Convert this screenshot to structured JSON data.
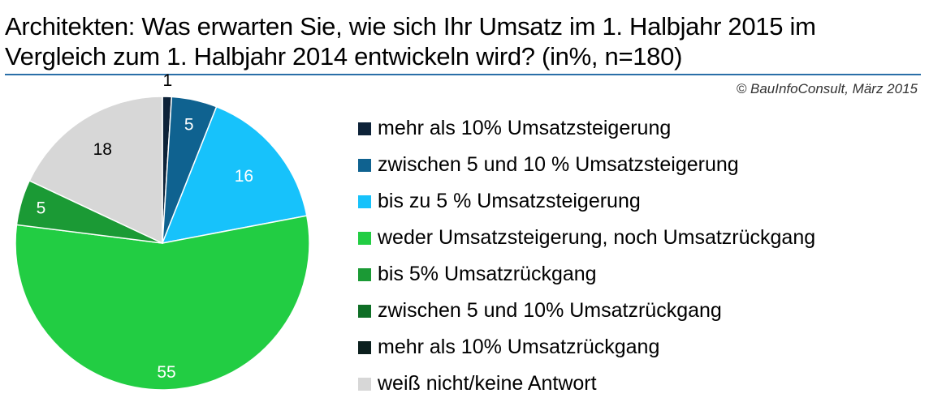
{
  "title_line1": "Architekten: Was erwarten Sie, wie sich Ihr Umsatz im 1. Halbjahr 2015 im",
  "title_line2": "Vergleich zum 1. Halbjahr 2014 entwickeln wird? (in%, n=180)",
  "copyright": "© BauInfoConsult,  März 2015",
  "chart_data": {
    "type": "pie",
    "title": "Architekten: Was erwarten Sie, wie sich Ihr Umsatz im 1. Halbjahr 2015 im Vergleich zum 1. Halbjahr 2014 entwickeln wird? (in%, n=180)",
    "legend_position": "right",
    "slices": [
      {
        "label": "mehr als 10% Umsatzsteigerung",
        "value": 1,
        "value_label": "1",
        "color": "#0d2238"
      },
      {
        "label": "zwischen 5 und 10 % Umsatzsteigerung",
        "value": 5,
        "value_label": "5",
        "color": "#0f6290"
      },
      {
        "label": "bis zu 5 % Umsatzsteigerung",
        "value": 16,
        "value_label": "16",
        "color": "#17c2fb"
      },
      {
        "label": "weder Umsatzsteigerung, noch Umsatzrückgang",
        "value": 55,
        "value_label": "55",
        "color": "#22cd43"
      },
      {
        "label": "bis 5% Umsatzrückgang",
        "value": 5,
        "value_label": "5",
        "color": "#1b9a35"
      },
      {
        "label": "zwischen 5 und 10% Umsatzrückgang",
        "value": 0,
        "value_label": "",
        "color": "#0f6e26"
      },
      {
        "label": "mehr als 10% Umsatzrückgang",
        "value": 0,
        "value_label": "",
        "color": "#0b1f1e"
      },
      {
        "label": "weiß nicht/keine Antwort",
        "value": 18,
        "value_label": "18",
        "color": "#d7d7d7"
      }
    ]
  }
}
